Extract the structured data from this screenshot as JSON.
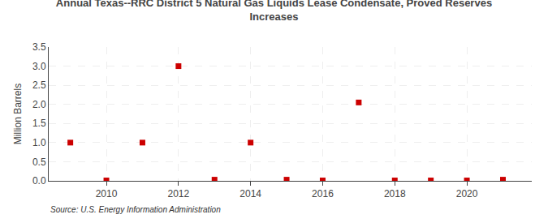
{
  "chart_data": {
    "type": "scatter",
    "title": "Annual Texas--RRC District 5 Natural Gas Liquids Lease Condensate, Proved Reserves\nIncreases",
    "y_label": "Million Barrels",
    "annotations": [
      "Source: U.S. Energy Information Administration"
    ],
    "x": [
      2009,
      2010,
      2011,
      2012,
      2013,
      2014,
      2015,
      2016,
      2017,
      2018,
      2019,
      2020,
      2021
    ],
    "values": [
      1.0,
      0.01,
      1.0,
      3.0,
      0.03,
      1.0,
      0.03,
      0.01,
      2.05,
      0.01,
      0.01,
      0.01,
      0.03
    ],
    "color": "#cc0000",
    "marker": "square",
    "xlim": [
      2008.4,
      2021.8
    ],
    "xticks": [
      2010,
      2012,
      2014,
      2016,
      2018,
      2020
    ],
    "ylim": [
      0.0,
      3.5
    ],
    "yticks": [
      {
        "value": 0.0,
        "label": "0.0"
      },
      0.5,
      {
        "value": 1.0,
        "label": "1.0"
      },
      1.5,
      {
        "value": 2.0,
        "label": "2.0"
      },
      2.5,
      {
        "value": 3.0,
        "label": "3.0"
      },
      3.5
    ],
    "grid": true
  }
}
